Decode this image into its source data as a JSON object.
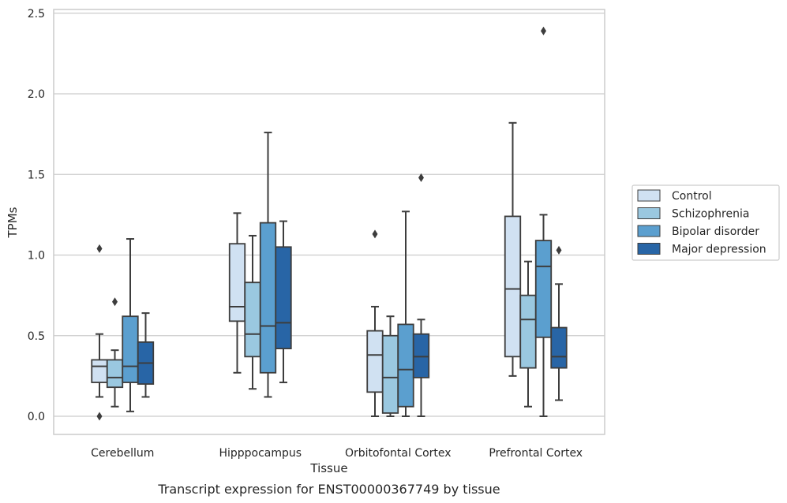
{
  "chart_data": {
    "type": "box",
    "title": "Transcript expression for ENST00000367749 by tissue",
    "xlabel": "Tissue",
    "ylabel": "TPMs",
    "ylim": [
      -0.12,
      2.52
    ],
    "yticks": [
      "0.0",
      "0.5",
      "1.0",
      "1.5",
      "2.0",
      "2.5"
    ],
    "grid": true,
    "legend_position": "right",
    "categories": [
      "Cerebellum",
      "Hipppocampus",
      "Orbitofontal Cortex",
      "Prefrontal Cortex"
    ],
    "series": [
      {
        "name": "Control",
        "color": "#d0e1f2",
        "boxes": [
          {
            "min": 0.12,
            "q1": 0.21,
            "median": 0.31,
            "q3": 0.35,
            "max": 0.51,
            "outliers": [
              1.04,
              0.0
            ]
          },
          {
            "min": 0.27,
            "q1": 0.59,
            "median": 0.68,
            "q3": 1.07,
            "max": 1.26,
            "outliers": []
          },
          {
            "min": 0.0,
            "q1": 0.15,
            "median": 0.38,
            "q3": 0.53,
            "max": 0.68,
            "outliers": [
              1.13
            ]
          },
          {
            "min": 0.25,
            "q1": 0.37,
            "median": 0.79,
            "q3": 1.24,
            "max": 1.82,
            "outliers": []
          }
        ]
      },
      {
        "name": "Schizophrenia",
        "color": "#9ac8e0",
        "boxes": [
          {
            "min": 0.06,
            "q1": 0.18,
            "median": 0.24,
            "q3": 0.35,
            "max": 0.41,
            "outliers": [
              0.71
            ]
          },
          {
            "min": 0.17,
            "q1": 0.37,
            "median": 0.51,
            "q3": 0.83,
            "max": 1.12,
            "outliers": []
          },
          {
            "min": 0.0,
            "q1": 0.02,
            "median": 0.24,
            "q3": 0.5,
            "max": 0.62,
            "outliers": []
          },
          {
            "min": 0.06,
            "q1": 0.3,
            "median": 0.6,
            "q3": 0.75,
            "max": 0.96,
            "outliers": []
          }
        ]
      },
      {
        "name": "Bipolar disorder",
        "color": "#5b9fcf",
        "boxes": [
          {
            "min": 0.03,
            "q1": 0.21,
            "median": 0.31,
            "q3": 0.62,
            "max": 1.1,
            "outliers": []
          },
          {
            "min": 0.12,
            "q1": 0.27,
            "median": 0.56,
            "q3": 1.2,
            "max": 1.76,
            "outliers": []
          },
          {
            "min": 0.0,
            "q1": 0.06,
            "median": 0.29,
            "q3": 0.57,
            "max": 1.27,
            "outliers": []
          },
          {
            "min": 0.0,
            "q1": 0.49,
            "median": 0.93,
            "q3": 1.09,
            "max": 1.25,
            "outliers": [
              2.39
            ]
          }
        ]
      },
      {
        "name": "Major depression",
        "color": "#2865a6",
        "boxes": [
          {
            "min": 0.12,
            "q1": 0.2,
            "median": 0.33,
            "q3": 0.46,
            "max": 0.64,
            "outliers": []
          },
          {
            "min": 0.21,
            "q1": 0.42,
            "median": 0.58,
            "q3": 1.05,
            "max": 1.21,
            "outliers": []
          },
          {
            "min": 0.0,
            "q1": 0.24,
            "median": 0.37,
            "q3": 0.51,
            "max": 0.6,
            "outliers": [
              1.48
            ]
          },
          {
            "min": 0.1,
            "q1": 0.3,
            "median": 0.37,
            "q3": 0.55,
            "max": 0.82,
            "outliers": [
              1.03
            ]
          }
        ]
      }
    ]
  }
}
